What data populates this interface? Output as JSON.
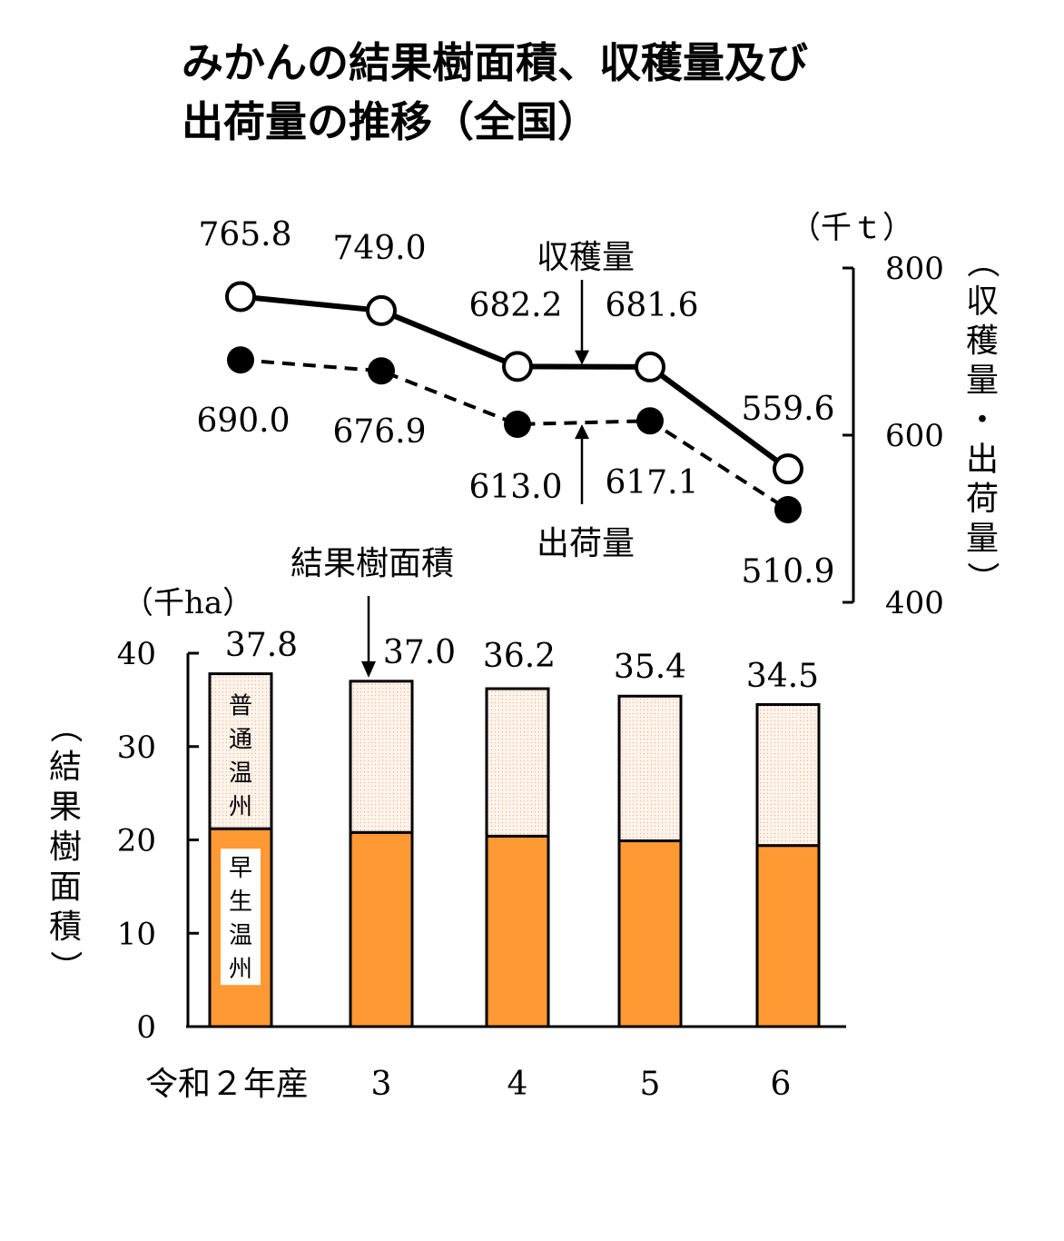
{
  "title_line1": "みかんの結果樹面積、収穫量及び",
  "title_line2": "出荷量の推移（全国）",
  "colors": {
    "early": "#FF9933",
    "regular_fill": "#FFF3EA",
    "regular_dot": "#E8A88A",
    "line": "#000000"
  },
  "chart_data": [
    {
      "type": "line",
      "x": [
        "令和２年産",
        "3",
        "4",
        "5",
        "6"
      ],
      "unit": "（千ｔ）",
      "ylabel": "（収穫量・出荷量）",
      "ylim": [
        400,
        800
      ],
      "yticks": [
        400,
        600,
        800
      ],
      "series": [
        {
          "name": "収穫量",
          "style": "solid, open circles",
          "values": [
            765.8,
            749.0,
            682.2,
            681.6,
            559.6
          ],
          "labels": [
            "765.8",
            "749.0",
            "682.2",
            "681.6",
            "559.6"
          ]
        },
        {
          "name": "出荷量",
          "style": "dashed, filled circles",
          "values": [
            690.0,
            676.9,
            613.0,
            617.1,
            510.9
          ],
          "labels": [
            "690.0",
            "676.9",
            "613.0",
            "617.1",
            "510.9"
          ]
        }
      ]
    },
    {
      "type": "bar",
      "stacked": true,
      "categories": [
        "令和２年産",
        "3",
        "4",
        "5",
        "6"
      ],
      "unit": "（千ha）",
      "ylabel": "（結果樹面積）",
      "series_label": "結果樹面積",
      "ylim": [
        0,
        40
      ],
      "yticks": [
        0,
        10,
        20,
        30,
        40
      ],
      "totals": [
        37.8,
        37.0,
        36.2,
        35.4,
        34.5
      ],
      "total_labels": [
        "37.8",
        "37.0",
        "36.2",
        "35.4",
        "34.5"
      ],
      "series": [
        {
          "name": "早生温州",
          "values": [
            21.2,
            20.8,
            20.4,
            19.9,
            19.4
          ]
        },
        {
          "name": "普通温州",
          "values": [
            16.6,
            16.2,
            15.8,
            15.5,
            15.1
          ]
        }
      ]
    }
  ]
}
